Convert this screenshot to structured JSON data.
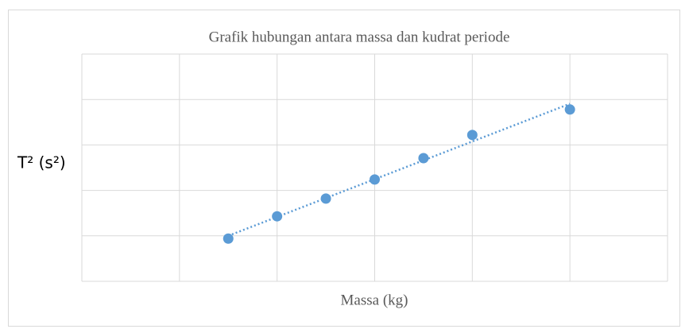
{
  "chart_data": {
    "type": "scatter",
    "title": "Grafik hubungan antara massa dan kudrat periode",
    "x_label": "Massa (kg)",
    "y_label": "T² (s²)",
    "color": "#5b9bd5",
    "trendline": "linear",
    "grid": true,
    "x": [
      1.5,
      2,
      2.5,
      3,
      3.5,
      4,
      5
    ],
    "values": [
      0.94,
      1.43,
      1.82,
      2.24,
      2.71,
      3.22,
      3.78
    ],
    "xlim": [
      0,
      6
    ],
    "xticks": [
      0,
      1,
      2,
      3,
      4,
      5,
      6
    ],
    "ylim": [
      0,
      5
    ],
    "yticks": [
      0,
      1,
      2,
      3,
      4,
      5
    ]
  }
}
